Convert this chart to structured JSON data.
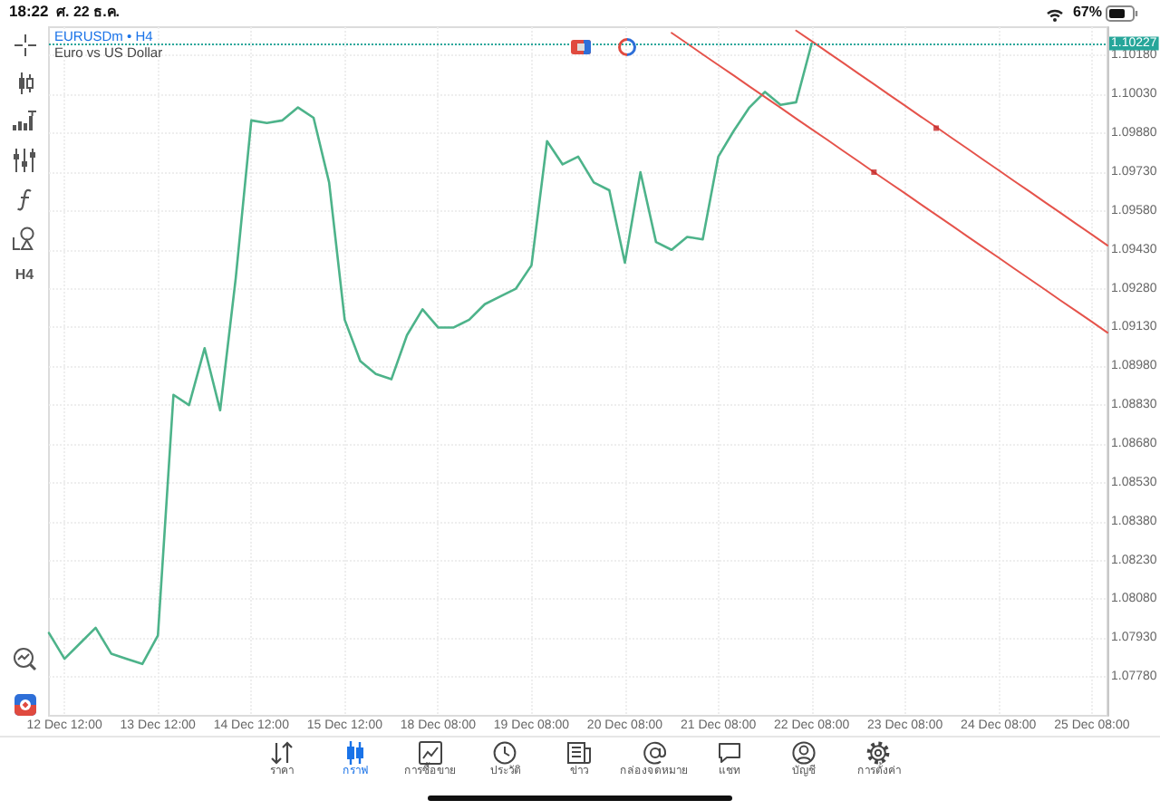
{
  "chart_data": {
    "type": "line",
    "title": "EURUSDm • H4",
    "subtitle": "Euro vs US Dollar",
    "categories": [
      null,
      "12 Dec 12:00",
      null,
      null,
      null,
      null,
      null,
      "13 Dec 12:00",
      null,
      null,
      null,
      null,
      null,
      "14 Dec 12:00",
      null,
      null,
      null,
      null,
      null,
      "15 Dec 12:00",
      null,
      null,
      null,
      null,
      null,
      "18 Dec 08:00",
      null,
      null,
      null,
      null,
      null,
      "19 Dec 08:00",
      null,
      null,
      null,
      null,
      null,
      "20 Dec 08:00",
      null,
      null,
      null,
      null,
      null,
      "21 Dec 08:00",
      null,
      null,
      null,
      null,
      null,
      "22 Dec 08:00",
      null,
      null,
      null,
      null,
      null,
      "23 Dec 08:00",
      null,
      null,
      null,
      null,
      null,
      "24 Dec 08:00",
      null,
      null,
      null,
      null,
      null,
      "25 Dec 08:00",
      null
    ],
    "series": [
      {
        "color": "#4db38a",
        "values": [
          1.0795,
          1.0785,
          1.0791,
          1.0797,
          1.0787,
          1.0785,
          1.0783,
          1.0794,
          1.0887,
          1.0883,
          1.0905,
          1.0881,
          1.0932,
          1.0993,
          1.0992,
          1.0993,
          1.0998,
          1.0994,
          1.0969,
          1.0916,
          1.09,
          1.0895,
          1.0893,
          1.091,
          1.092,
          1.0913,
          1.0913,
          1.0916,
          1.0922,
          1.0925,
          1.0928,
          1.0937,
          1.0985,
          1.0976,
          1.0979,
          1.0969,
          1.0966,
          1.0938,
          1.0973,
          1.0946,
          1.0943,
          1.0948,
          1.0947,
          1.0979,
          1.0989,
          1.0998,
          1.1004,
          1.0999,
          1.1,
          1.10227,
          null,
          null,
          null,
          null,
          null,
          null,
          null,
          null,
          null,
          null,
          null,
          null,
          null,
          null,
          null,
          null,
          null,
          null,
          null
        ]
      },
      {
        "color": "#e5534b",
        "values": [
          null,
          null,
          null,
          null,
          null,
          null,
          null,
          null,
          null,
          null,
          null,
          null,
          null,
          null,
          null,
          null,
          null,
          null,
          null,
          null,
          null,
          null,
          null,
          null,
          null,
          null,
          null,
          null,
          null,
          null,
          null,
          null,
          null,
          null,
          null,
          null,
          null,
          null,
          null,
          null,
          null,
          null,
          null,
          null,
          null,
          null,
          null,
          null,
          1.10277,
          1.10236,
          1.10194,
          1.10153,
          1.10111,
          1.1007,
          1.10028,
          1.09987,
          1.09945,
          1.09904,
          1.09862,
          1.09821,
          1.09779,
          1.09738,
          1.09696,
          1.09655,
          1.09613,
          1.09572,
          1.0953,
          1.09489,
          1.09447
        ]
      },
      {
        "color": "#e5534b",
        "values": [
          null,
          null,
          null,
          null,
          null,
          null,
          null,
          null,
          null,
          null,
          null,
          null,
          null,
          null,
          null,
          null,
          null,
          null,
          null,
          null,
          null,
          null,
          null,
          null,
          null,
          null,
          null,
          null,
          null,
          null,
          null,
          null,
          null,
          null,
          null,
          null,
          null,
          null,
          null,
          null,
          1.10268,
          1.10227,
          1.10185,
          1.10144,
          1.10103,
          1.10061,
          1.1002,
          1.09979,
          1.09937,
          1.09896,
          1.09855,
          1.09813,
          1.09772,
          1.0973,
          1.09689,
          1.09648,
          1.09606,
          1.09565,
          1.09524,
          1.09482,
          1.09441,
          1.094,
          1.09358,
          1.09317,
          1.09276,
          1.09234,
          1.09193,
          1.09152,
          1.0911
        ]
      },
      {
        "type": "scatter",
        "color": "#c62828",
        "marker": "square",
        "values": [
          null,
          null,
          null,
          null,
          null,
          null,
          null,
          null,
          null,
          null,
          null,
          null,
          null,
          null,
          null,
          null,
          null,
          null,
          null,
          null,
          null,
          null,
          null,
          null,
          null,
          null,
          null,
          null,
          null,
          null,
          null,
          null,
          null,
          null,
          null,
          null,
          null,
          null,
          null,
          null,
          null,
          null,
          null,
          null,
          null,
          null,
          null,
          null,
          null,
          null,
          null,
          null,
          null,
          1.0973,
          null,
          null,
          null,
          1.099,
          null,
          null,
          null,
          null,
          null,
          null,
          null,
          null,
          null,
          null,
          null
        ]
      }
    ],
    "ylim": [
      1.0763,
      1.1029
    ],
    "yticks": [
      {
        "value": 1.0778,
        "label": "1.07780"
      },
      {
        "value": 1.0793,
        "label": "1.07930"
      },
      {
        "value": 1.0808,
        "label": "1.08080"
      },
      {
        "value": 1.0823,
        "label": "1.08230"
      },
      {
        "value": 1.0838,
        "label": "1.08380"
      },
      {
        "value": 1.0853,
        "label": "1.08530"
      },
      {
        "value": 1.0868,
        "label": "1.08680"
      },
      {
        "value": 1.0883,
        "label": "1.08830"
      },
      {
        "value": 1.0898,
        "label": "1.08980"
      },
      {
        "value": 1.0913,
        "label": "1.09130"
      },
      {
        "value": 1.0928,
        "label": "1.09280"
      },
      {
        "value": 1.0943,
        "label": "1.09430"
      },
      {
        "value": 1.0958,
        "label": "1.09580"
      },
      {
        "value": 1.0973,
        "label": "1.09730"
      },
      {
        "value": 1.0988,
        "label": "1.09880"
      },
      {
        "value": 1.1003,
        "label": "1.10030"
      },
      {
        "value": 1.1018,
        "label": "1.10180"
      }
    ],
    "grid": true,
    "marker": "none",
    "line_style": "solid",
    "ref_lines": [
      {
        "axis": "y",
        "value": 1.10227,
        "label": "1.10227",
        "color": "#26a69a",
        "line_style": "dotted"
      }
    ],
    "annotations": [
      "18:22",
      "ศ. 22 ธ.ค.",
      "67%",
      "H4",
      "ราคา",
      "กราฟ",
      "การซื้อขาย",
      "ประวัติ",
      "ข่าว",
      "กล่องจดหมาย",
      "แชท",
      "บัญชี",
      "การตั้งค่า"
    ]
  }
}
